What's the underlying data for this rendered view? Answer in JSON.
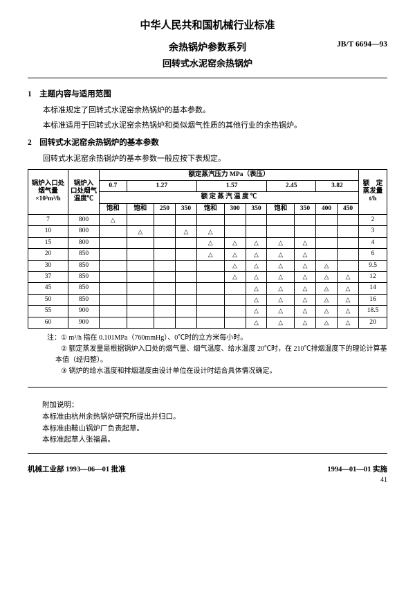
{
  "header": {
    "country_title": "中华人民共和国机械行业标准",
    "main_title": "余热锅炉参数系列",
    "sub_title": "回转式水泥窑余热锅炉",
    "standard_code": "JB/T 6694—93"
  },
  "section1": {
    "heading": "1　主题内容与适用范围",
    "p1": "本标准规定了回转式水泥窑余热锅炉的基本参数。",
    "p2": "本标准适用于回转式水泥窑余热锅炉和类似烟气性质的其他行业的余热锅炉。"
  },
  "section2": {
    "heading": "2　回转式水泥窑余热锅炉的基本参数",
    "p1": "回转式水泥窑余热锅炉的基本参数一般应按下表规定。"
  },
  "table": {
    "col_inlet_gas": "锅炉入口处烟气量\n×10³m³/h",
    "col_inlet_temp": "锅炉入\n口处烟气\n温度℃",
    "col_pressure_header": "额定蒸汽压力 MPa（表压）",
    "col_evap": "额　定\n蒸发量\nt/h",
    "col_temp_header": "额 定 蒸 汽 温 度 ℃",
    "pressures": [
      "0.7",
      "1.27",
      "1.57",
      "2.45",
      "3.82"
    ],
    "temps": [
      "饱和",
      "饱和",
      "250",
      "350",
      "饱和",
      "300",
      "350",
      "饱和",
      "350",
      "400",
      "450"
    ],
    "rows": [
      {
        "gas": "7",
        "temp": "800",
        "marks": [
          "△",
          "",
          "",
          "",
          "",
          "",
          "",
          "",
          "",
          "",
          ""
        ],
        "evap": "2"
      },
      {
        "gas": "10",
        "temp": "800",
        "marks": [
          "",
          "△",
          "",
          "△",
          "△",
          "",
          "",
          "",
          "",
          "",
          ""
        ],
        "evap": "3"
      },
      {
        "gas": "15",
        "temp": "800",
        "marks": [
          "",
          "",
          "",
          "",
          "△",
          "△",
          "△",
          "△",
          "△",
          "",
          ""
        ],
        "evap": "4"
      },
      {
        "gas": "20",
        "temp": "850",
        "marks": [
          "",
          "",
          "",
          "",
          "△",
          "△",
          "△",
          "△",
          "△",
          "",
          ""
        ],
        "evap": "6"
      },
      {
        "gas": "30",
        "temp": "850",
        "marks": [
          "",
          "",
          "",
          "",
          "",
          "△",
          "△",
          "△",
          "△",
          "△",
          ""
        ],
        "evap": "9.5"
      },
      {
        "gas": "37",
        "temp": "850",
        "marks": [
          "",
          "",
          "",
          "",
          "",
          "△",
          "△",
          "△",
          "△",
          "△",
          "△"
        ],
        "evap": "12"
      },
      {
        "gas": "45",
        "temp": "850",
        "marks": [
          "",
          "",
          "",
          "",
          "",
          "",
          "△",
          "△",
          "△",
          "△",
          "△"
        ],
        "evap": "14"
      },
      {
        "gas": "50",
        "temp": "850",
        "marks": [
          "",
          "",
          "",
          "",
          "",
          "",
          "△",
          "△",
          "△",
          "△",
          "△"
        ],
        "evap": "16"
      },
      {
        "gas": "55",
        "temp": "900",
        "marks": [
          "",
          "",
          "",
          "",
          "",
          "",
          "△",
          "△",
          "△",
          "△",
          "△"
        ],
        "evap": "18.5"
      },
      {
        "gas": "60",
        "temp": "900",
        "marks": [
          "",
          "",
          "",
          "",
          "",
          "",
          "△",
          "△",
          "△",
          "△",
          "△"
        ],
        "evap": "20"
      }
    ]
  },
  "notes": {
    "label": "注：",
    "n1": "m³/h 指在 0.101MPa（760mmHg）、0℃时的立方米每小时。",
    "n2": "额定蒸发量是根据锅炉入口处的烟气量、烟气温度、给水温度 20℃时，在 210℃排烟温度下的理论计算基本值（经归整）。",
    "n3": "锅炉的给水温度和排烟温度由设计单位在设计时结合具体情况确定。"
  },
  "appendix": {
    "title": "附加说明：",
    "l1": "本标准由杭州余热锅炉研究所提出并归口。",
    "l2": "本标准由鞍山锅炉厂负责起草。",
    "l3": "本标准起草人张福昌。"
  },
  "footer": {
    "left": "机械工业部 1993—06—01 批准",
    "right": "1994—01—01 实施",
    "page": "41"
  }
}
